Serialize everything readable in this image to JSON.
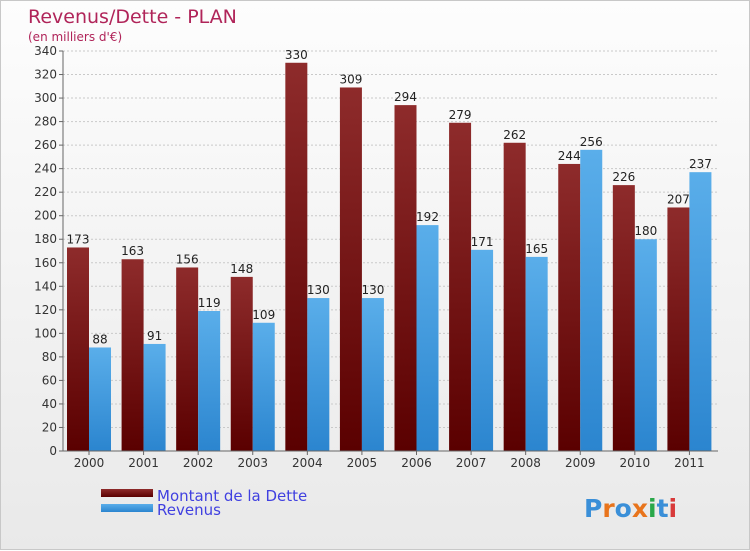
{
  "chart_data": {
    "type": "bar",
    "title": "Revenus/Dette - PLAN",
    "subtitle": "(en milliers d'€)",
    "categories": [
      "2000",
      "2001",
      "2002",
      "2003",
      "2004",
      "2005",
      "2006",
      "2007",
      "2008",
      "2009",
      "2010",
      "2011"
    ],
    "series": [
      {
        "name": "Montant de la Dette",
        "color": "#7a1b1b",
        "values": [
          173,
          163,
          156,
          148,
          330,
          309,
          294,
          279,
          262,
          244,
          226,
          207
        ]
      },
      {
        "name": "Revenus",
        "color": "#3f9be3",
        "values": [
          88,
          91,
          119,
          109,
          130,
          130,
          192,
          171,
          165,
          256,
          180,
          237
        ]
      }
    ],
    "ylim": [
      0,
      340
    ],
    "ytick_step": 20,
    "grid": true,
    "legend": "bottom-left"
  },
  "logo": {
    "text": "Proxiti"
  }
}
